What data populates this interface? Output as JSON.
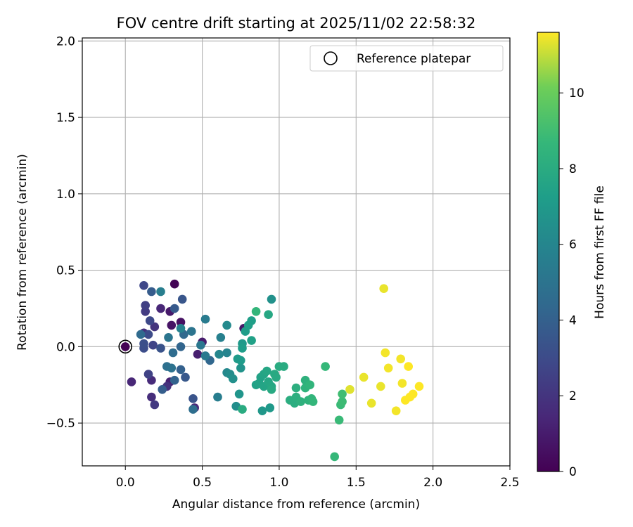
{
  "chart_data": {
    "type": "scatter",
    "title": "FOV centre drift starting at 2025/11/02 22:58:32",
    "xlabel": "Angular distance from reference (arcmin)",
    "ylabel": "Rotation from reference (arcmin)",
    "xlim": [
      -0.28,
      2.5
    ],
    "ylim": [
      -0.78,
      2.02
    ],
    "xticks": [
      0.0,
      0.5,
      1.0,
      1.5,
      2.0,
      2.5
    ],
    "xtick_labels": [
      "0.0",
      "0.5",
      "1.0",
      "1.5",
      "2.0",
      "2.5"
    ],
    "yticks": [
      -0.5,
      0.0,
      0.5,
      1.0,
      1.5,
      2.0
    ],
    "ytick_labels": [
      "−0.5",
      "0.0",
      "0.5",
      "1.0",
      "1.5",
      "2.0"
    ],
    "grid": true,
    "legend": {
      "position": "top-right",
      "entries": [
        "Reference platepar"
      ]
    },
    "reference_point": {
      "x": 0.0,
      "y": 0.0
    },
    "colorbar": {
      "label": "Hours from first FF file",
      "colormap": "viridis",
      "min": 0,
      "max": 11.6,
      "ticks": [
        0,
        2,
        4,
        6,
        8,
        10
      ],
      "tick_labels": [
        "0",
        "2",
        "4",
        "6",
        "8",
        "10"
      ]
    },
    "points": [
      {
        "x": 0.0,
        "y": 0.0,
        "h": 0.0
      },
      {
        "x": 0.32,
        "y": 0.41,
        "h": 0.1
      },
      {
        "x": 0.36,
        "y": 0.16,
        "h": 0.6
      },
      {
        "x": 0.3,
        "y": 0.14,
        "h": 0.7
      },
      {
        "x": 0.77,
        "y": 0.12,
        "h": 0.8
      },
      {
        "x": 0.29,
        "y": 0.23,
        "h": 0.9
      },
      {
        "x": 0.5,
        "y": 0.03,
        "h": 1.0
      },
      {
        "x": 0.47,
        "y": -0.05,
        "h": 1.1
      },
      {
        "x": 0.29,
        "y": -0.23,
        "h": 1.2
      },
      {
        "x": 0.04,
        "y": -0.23,
        "h": 1.4
      },
      {
        "x": 0.23,
        "y": 0.25,
        "h": 1.4
      },
      {
        "x": 0.45,
        "y": -0.4,
        "h": 1.5
      },
      {
        "x": 0.17,
        "y": -0.22,
        "h": 1.6
      },
      {
        "x": 0.17,
        "y": -0.33,
        "h": 1.7
      },
      {
        "x": 0.12,
        "y": 0.09,
        "h": 1.8
      },
      {
        "x": 0.27,
        "y": -0.26,
        "h": 1.9
      },
      {
        "x": 0.19,
        "y": 0.13,
        "h": 2.0
      },
      {
        "x": 0.19,
        "y": -0.38,
        "h": 2.2
      },
      {
        "x": 0.13,
        "y": 0.23,
        "h": 2.3
      },
      {
        "x": 0.13,
        "y": 0.27,
        "h": 2.5
      },
      {
        "x": 0.15,
        "y": -0.18,
        "h": 2.6
      },
      {
        "x": 0.18,
        "y": 0.01,
        "h": 2.7
      },
      {
        "x": 0.12,
        "y": 0.4,
        "h": 2.8
      },
      {
        "x": 0.16,
        "y": 0.17,
        "h": 2.9
      },
      {
        "x": 0.15,
        "y": 0.08,
        "h": 3.0
      },
      {
        "x": 0.12,
        "y": -0.01,
        "h": 3.1
      },
      {
        "x": 0.12,
        "y": 0.02,
        "h": 3.2
      },
      {
        "x": 0.23,
        "y": -0.01,
        "h": 3.3
      },
      {
        "x": 0.44,
        "y": -0.34,
        "h": 3.4
      },
      {
        "x": 0.37,
        "y": 0.31,
        "h": 3.5
      },
      {
        "x": 0.39,
        "y": -0.2,
        "h": 3.6
      },
      {
        "x": 0.32,
        "y": 0.25,
        "h": 3.7
      },
      {
        "x": 0.17,
        "y": 0.36,
        "h": 3.8
      },
      {
        "x": 0.24,
        "y": -0.28,
        "h": 3.9
      },
      {
        "x": 0.36,
        "y": -0.15,
        "h": 4.0
      },
      {
        "x": 0.32,
        "y": -0.22,
        "h": 4.1
      },
      {
        "x": 0.36,
        "y": 0.0,
        "h": 4.2
      },
      {
        "x": 0.55,
        "y": -0.09,
        "h": 4.3
      },
      {
        "x": 0.38,
        "y": 0.08,
        "h": 4.4
      },
      {
        "x": 0.1,
        "y": 0.08,
        "h": 4.5
      },
      {
        "x": 0.31,
        "y": -0.04,
        "h": 4.6
      },
      {
        "x": 0.44,
        "y": -0.41,
        "h": 4.7
      },
      {
        "x": 0.27,
        "y": -0.13,
        "h": 4.8
      },
      {
        "x": 0.3,
        "y": -0.14,
        "h": 4.9
      },
      {
        "x": 0.43,
        "y": 0.1,
        "h": 5.0
      },
      {
        "x": 0.28,
        "y": 0.06,
        "h": 5.1
      },
      {
        "x": 0.49,
        "y": 0.01,
        "h": 5.2
      },
      {
        "x": 0.52,
        "y": -0.06,
        "h": 5.3
      },
      {
        "x": 0.52,
        "y": 0.18,
        "h": 5.4
      },
      {
        "x": 0.6,
        "y": -0.33,
        "h": 5.5
      },
      {
        "x": 0.23,
        "y": 0.36,
        "h": 5.6
      },
      {
        "x": 0.62,
        "y": 0.06,
        "h": 5.7
      },
      {
        "x": 0.36,
        "y": 0.12,
        "h": 5.8
      },
      {
        "x": 0.66,
        "y": -0.04,
        "h": 5.9
      },
      {
        "x": 0.61,
        "y": -0.05,
        "h": 6.0
      },
      {
        "x": 0.66,
        "y": -0.17,
        "h": 6.1
      },
      {
        "x": 0.66,
        "y": 0.14,
        "h": 6.2
      },
      {
        "x": 0.68,
        "y": -0.18,
        "h": 6.3
      },
      {
        "x": 0.72,
        "y": -0.39,
        "h": 6.4
      },
      {
        "x": 0.7,
        "y": -0.21,
        "h": 6.5
      },
      {
        "x": 0.95,
        "y": 0.31,
        "h": 6.6
      },
      {
        "x": 0.75,
        "y": -0.14,
        "h": 6.7
      },
      {
        "x": 0.74,
        "y": -0.31,
        "h": 6.8
      },
      {
        "x": 0.89,
        "y": -0.42,
        "h": 6.9
      },
      {
        "x": 0.94,
        "y": -0.4,
        "h": 7.0
      },
      {
        "x": 0.76,
        "y": 0.02,
        "h": 7.0
      },
      {
        "x": 0.73,
        "y": -0.08,
        "h": 7.1
      },
      {
        "x": 0.75,
        "y": -0.09,
        "h": 7.1
      },
      {
        "x": 0.76,
        "y": -0.01,
        "h": 7.2
      },
      {
        "x": 0.78,
        "y": 0.1,
        "h": 7.2
      },
      {
        "x": 0.8,
        "y": 0.14,
        "h": 7.3
      },
      {
        "x": 0.82,
        "y": 0.17,
        "h": 7.3
      },
      {
        "x": 0.82,
        "y": 0.04,
        "h": 7.4
      },
      {
        "x": 0.85,
        "y": -0.25,
        "h": 7.4
      },
      {
        "x": 0.87,
        "y": -0.24,
        "h": 7.5
      },
      {
        "x": 0.88,
        "y": -0.2,
        "h": 7.5
      },
      {
        "x": 0.9,
        "y": -0.18,
        "h": 7.6
      },
      {
        "x": 0.9,
        "y": -0.26,
        "h": 7.6
      },
      {
        "x": 0.92,
        "y": -0.16,
        "h": 7.7
      },
      {
        "x": 0.93,
        "y": -0.23,
        "h": 7.7
      },
      {
        "x": 0.93,
        "y": 0.21,
        "h": 7.8
      },
      {
        "x": 0.95,
        "y": -0.26,
        "h": 7.8
      },
      {
        "x": 0.95,
        "y": -0.28,
        "h": 7.9
      },
      {
        "x": 0.97,
        "y": -0.18,
        "h": 7.9
      },
      {
        "x": 0.98,
        "y": -0.2,
        "h": 7.9
      },
      {
        "x": 0.76,
        "y": -0.41,
        "h": 8.0
      },
      {
        "x": 1.0,
        "y": -0.13,
        "h": 8.0
      },
      {
        "x": 1.03,
        "y": -0.13,
        "h": 8.0
      },
      {
        "x": 1.07,
        "y": -0.35,
        "h": 8.1
      },
      {
        "x": 1.1,
        "y": -0.37,
        "h": 8.1
      },
      {
        "x": 1.11,
        "y": -0.27,
        "h": 8.2
      },
      {
        "x": 1.11,
        "y": -0.33,
        "h": 8.2
      },
      {
        "x": 1.14,
        "y": -0.36,
        "h": 8.3
      },
      {
        "x": 1.17,
        "y": -0.22,
        "h": 8.3
      },
      {
        "x": 1.17,
        "y": -0.27,
        "h": 8.4
      },
      {
        "x": 1.19,
        "y": -0.35,
        "h": 8.4
      },
      {
        "x": 1.2,
        "y": -0.25,
        "h": 8.5
      },
      {
        "x": 1.21,
        "y": -0.34,
        "h": 8.5
      },
      {
        "x": 1.22,
        "y": -0.36,
        "h": 8.6
      },
      {
        "x": 0.85,
        "y": 0.23,
        "h": 8.6
      },
      {
        "x": 1.3,
        "y": -0.13,
        "h": 8.7
      },
      {
        "x": 1.36,
        "y": -0.72,
        "h": 8.7
      },
      {
        "x": 1.39,
        "y": -0.48,
        "h": 8.8
      },
      {
        "x": 1.4,
        "y": -0.38,
        "h": 8.8
      },
      {
        "x": 1.41,
        "y": -0.36,
        "h": 8.9
      },
      {
        "x": 1.41,
        "y": -0.31,
        "h": 9.0
      },
      {
        "x": 1.46,
        "y": -0.28,
        "h": 11.3
      },
      {
        "x": 1.55,
        "y": -0.2,
        "h": 11.4
      },
      {
        "x": 1.6,
        "y": -0.37,
        "h": 11.4
      },
      {
        "x": 1.66,
        "y": -0.26,
        "h": 11.4
      },
      {
        "x": 1.68,
        "y": 0.38,
        "h": 11.4
      },
      {
        "x": 1.69,
        "y": -0.04,
        "h": 11.5
      },
      {
        "x": 1.71,
        "y": -0.14,
        "h": 11.5
      },
      {
        "x": 1.76,
        "y": -0.42,
        "h": 11.5
      },
      {
        "x": 1.79,
        "y": -0.08,
        "h": 11.5
      },
      {
        "x": 1.8,
        "y": -0.24,
        "h": 11.5
      },
      {
        "x": 1.82,
        "y": -0.35,
        "h": 11.6
      },
      {
        "x": 1.84,
        "y": -0.13,
        "h": 11.6
      },
      {
        "x": 1.85,
        "y": -0.33,
        "h": 11.6
      },
      {
        "x": 1.87,
        "y": -0.31,
        "h": 11.6
      },
      {
        "x": 1.91,
        "y": -0.26,
        "h": 11.6
      }
    ]
  }
}
